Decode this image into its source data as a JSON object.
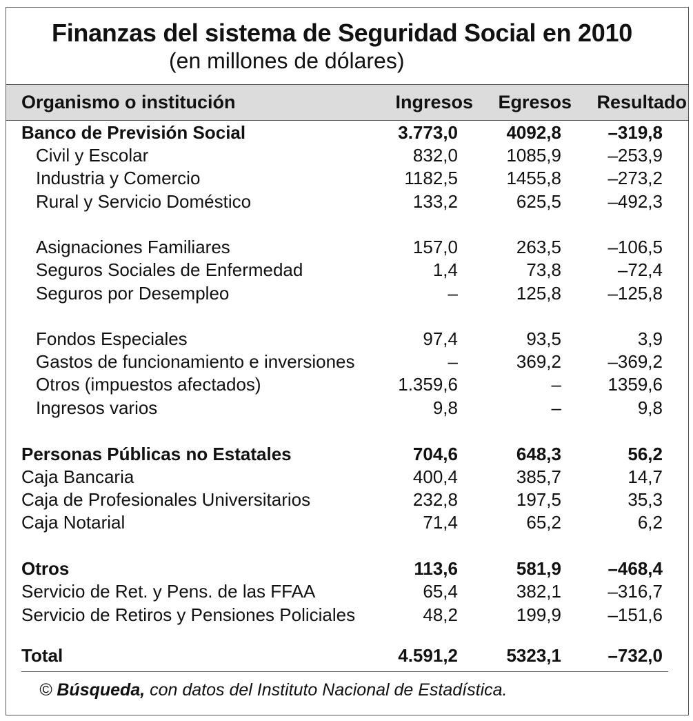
{
  "title": "Finanzas del sistema de Seguridad Social en 2010",
  "subtitle": "(en millones de dólares)",
  "headers": {
    "name": "Organismo o institución",
    "ingresos": "Ingresos",
    "egresos": "Egresos",
    "resultado": "Resultado"
  },
  "rows": [
    {
      "name": "Banco de Previsión Social",
      "ingresos": "3.773,0",
      "egresos": "4092,8",
      "resultado": "–319,8"
    },
    {
      "name": "Civil y Escolar",
      "ingresos": "832,0",
      "egresos": "1085,9",
      "resultado": "–253,9"
    },
    {
      "name": "Industria y Comercio",
      "ingresos": "1182,5",
      "egresos": "1455,8",
      "resultado": "–273,2"
    },
    {
      "name": "Rural y Servicio Doméstico",
      "ingresos": "133,2",
      "egresos": "625,5",
      "resultado": "–492,3"
    },
    {
      "name": "Asignaciones Familiares",
      "ingresos": "157,0",
      "egresos": "263,5",
      "resultado": "–106,5"
    },
    {
      "name": "Seguros Sociales de Enfermedad",
      "ingresos": "1,4",
      "egresos": "73,8",
      "resultado": "–72,4"
    },
    {
      "name": "Seguros por Desempleo",
      "ingresos": "–",
      "egresos": "125,8",
      "resultado": "–125,8"
    },
    {
      "name": "Fondos Especiales",
      "ingresos": "97,4",
      "egresos": "93,5",
      "resultado": "3,9"
    },
    {
      "name": "Gastos de funcionamiento e inversiones",
      "ingresos": "–",
      "egresos": "369,2",
      "resultado": "–369,2"
    },
    {
      "name": "Otros (impuestos afectados)",
      "ingresos": "1.359,6",
      "egresos": "–",
      "resultado": "1359,6"
    },
    {
      "name": "Ingresos varios",
      "ingresos": "9,8",
      "egresos": "–",
      "resultado": "9,8"
    },
    {
      "name": "Personas Públicas no Estatales",
      "ingresos": "704,6",
      "egresos": "648,3",
      "resultado": "56,2"
    },
    {
      "name": "Caja Bancaria",
      "ingresos": "400,4",
      "egresos": "385,7",
      "resultado": "14,7"
    },
    {
      "name": "Caja de Profesionales Universitarios",
      "ingresos": "232,8",
      "egresos": "197,5",
      "resultado": "35,3"
    },
    {
      "name": "Caja Notarial",
      "ingresos": "71,4",
      "egresos": "65,2",
      "resultado": "6,2"
    },
    {
      "name": "Otros",
      "ingresos": "113,6",
      "egresos": "581,9",
      "resultado": "–468,4"
    },
    {
      "name": "Servicio de Ret. y Pens. de las FFAA",
      "ingresos": "65,4",
      "egresos": "382,1",
      "resultado": "–316,7"
    },
    {
      "name": "Servicio de Retiros y Pensiones Policiales",
      "ingresos": "48,2",
      "egresos": "199,9",
      "resultado": "–151,6"
    },
    {
      "name": "Total",
      "ingresos": "4.591,2",
      "egresos": "5323,1",
      "resultado": "–732,0"
    }
  ],
  "footer": {
    "prefix": "© ",
    "source": "Búsqueda,",
    "rest": " con datos del Instituto Nacional de Estadística."
  }
}
